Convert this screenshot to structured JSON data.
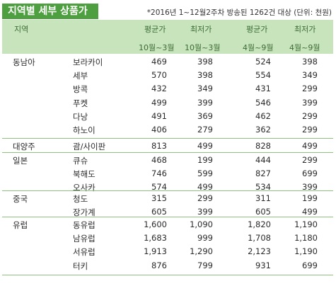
{
  "title": "지역별 세부 상품가",
  "note": "*2016년 1~12월2주차 방송된 1262건 대상 (단위: 천원)",
  "headers": {
    "region": "지역",
    "col1_top": "평균가",
    "col1_bottom": "10월~3월",
    "col2_top": "최저가",
    "col2_bottom": "10월~3월",
    "col3_top": "평균가",
    "col3_bottom": "4월~9월",
    "col4_top": "최저가",
    "col4_bottom": "4월~9월"
  },
  "groups": [
    {
      "region": "동남아",
      "rows": [
        {
          "city": "보라카이",
          "v": [
            "469",
            "398",
            "524",
            "398"
          ]
        },
        {
          "city": "세부",
          "v": [
            "570",
            "398",
            "554",
            "349"
          ]
        },
        {
          "city": "방콕",
          "v": [
            "432",
            "349",
            "431",
            "299"
          ]
        },
        {
          "city": "푸켓",
          "v": [
            "499",
            "399",
            "546",
            "399"
          ]
        },
        {
          "city": "다낭",
          "v": [
            "491",
            "369",
            "462",
            "299"
          ]
        },
        {
          "city": "하노이",
          "v": [
            "406",
            "279",
            "362",
            "299"
          ]
        }
      ]
    },
    {
      "region": "대양주",
      "rows": [
        {
          "city": "괌/사이판",
          "v": [
            "813",
            "499",
            "828",
            "499"
          ]
        }
      ]
    },
    {
      "region": "일본",
      "rows": [
        {
          "city": "큐슈",
          "v": [
            "468",
            "199",
            "444",
            "299"
          ]
        },
        {
          "city": "북해도",
          "v": [
            "746",
            "599",
            "827",
            "699"
          ]
        },
        {
          "city": "오사카",
          "v": [
            "574",
            "499",
            "534",
            "399"
          ]
        }
      ]
    },
    {
      "region": "중국",
      "rows": [
        {
          "city": "청도",
          "v": [
            "315",
            "299",
            "311",
            "199"
          ]
        },
        {
          "city": "장가계",
          "v": [
            "605",
            "399",
            "605",
            "499"
          ]
        }
      ]
    },
    {
      "region": "유럽",
      "rows": [
        {
          "city": "동유럽",
          "v": [
            "1,600",
            "1,090",
            "1,820",
            "1,190"
          ]
        },
        {
          "city": "남유럽",
          "v": [
            "1,683",
            "999",
            "1,708",
            "1,180"
          ]
        },
        {
          "city": "서유럽",
          "v": [
            "1,913",
            "1,290",
            "2,123",
            "1,190"
          ]
        },
        {
          "city": "터키",
          "v": [
            "876",
            "799",
            "931",
            "699"
          ]
        }
      ]
    }
  ]
}
